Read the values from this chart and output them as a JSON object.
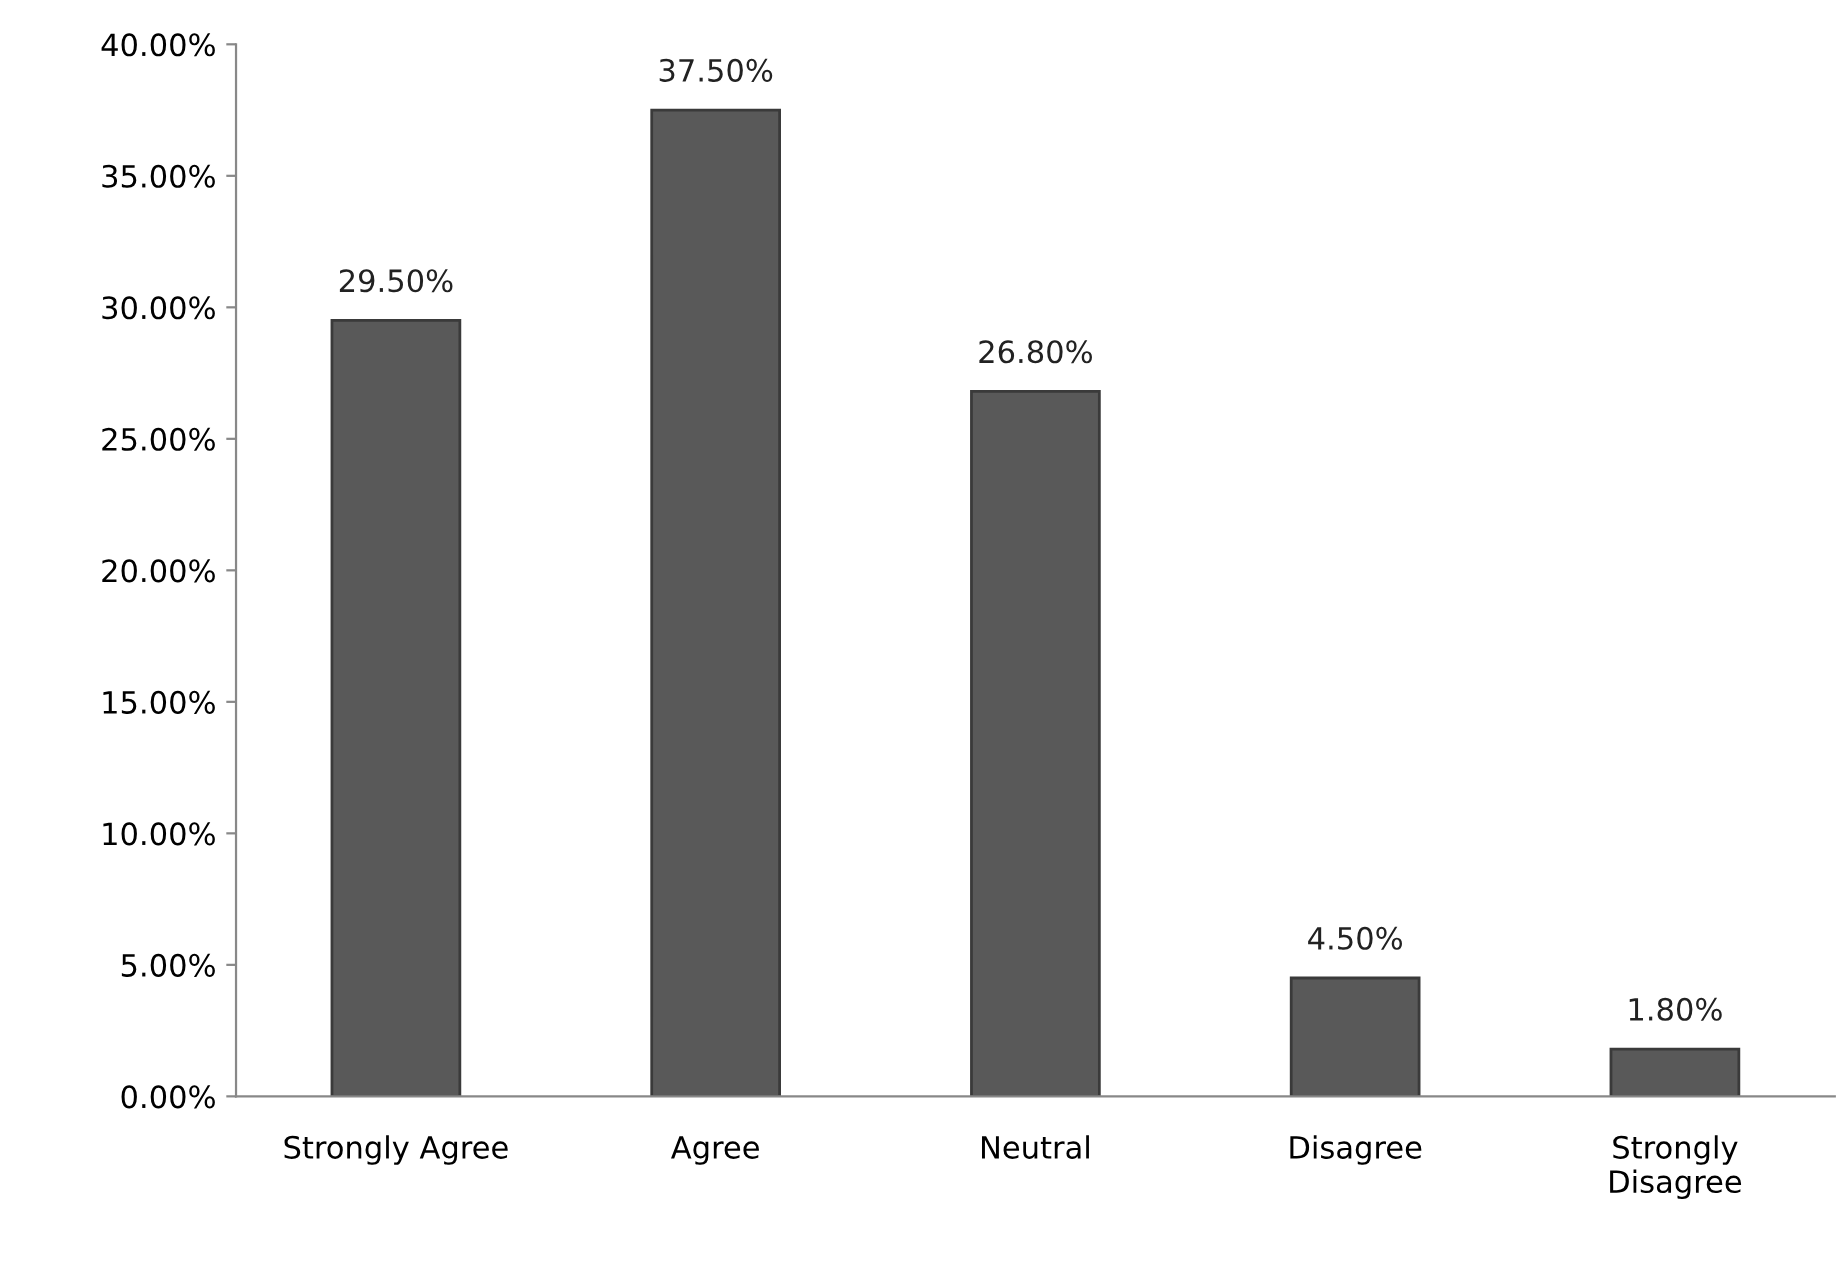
{
  "chart_data": {
    "type": "bar",
    "categories": [
      "Strongly Agree",
      "Agree",
      "Neutral",
      "Disagree",
      "Strongly\nDisagree"
    ],
    "values": [
      29.5,
      37.5,
      26.8,
      4.5,
      1.8
    ],
    "value_labels": [
      "29.50%",
      "37.50%",
      "26.80%",
      "4.50%",
      "1.80%"
    ],
    "color": "#595959",
    "ylim": [
      0,
      40
    ],
    "yticks": [
      {
        "value": 0,
        "label": "0.00%"
      },
      {
        "value": 5,
        "label": "5.00%"
      },
      {
        "value": 10,
        "label": "10.00%"
      },
      {
        "value": 15,
        "label": "15.00%"
      },
      {
        "value": 20,
        "label": "20.00%"
      },
      {
        "value": 25,
        "label": "25.00%"
      },
      {
        "value": 30,
        "label": "30.00%"
      },
      {
        "value": 35,
        "label": "35.00%"
      },
      {
        "value": 40,
        "label": "40.00%"
      }
    ],
    "grid": false,
    "legend": false
  }
}
